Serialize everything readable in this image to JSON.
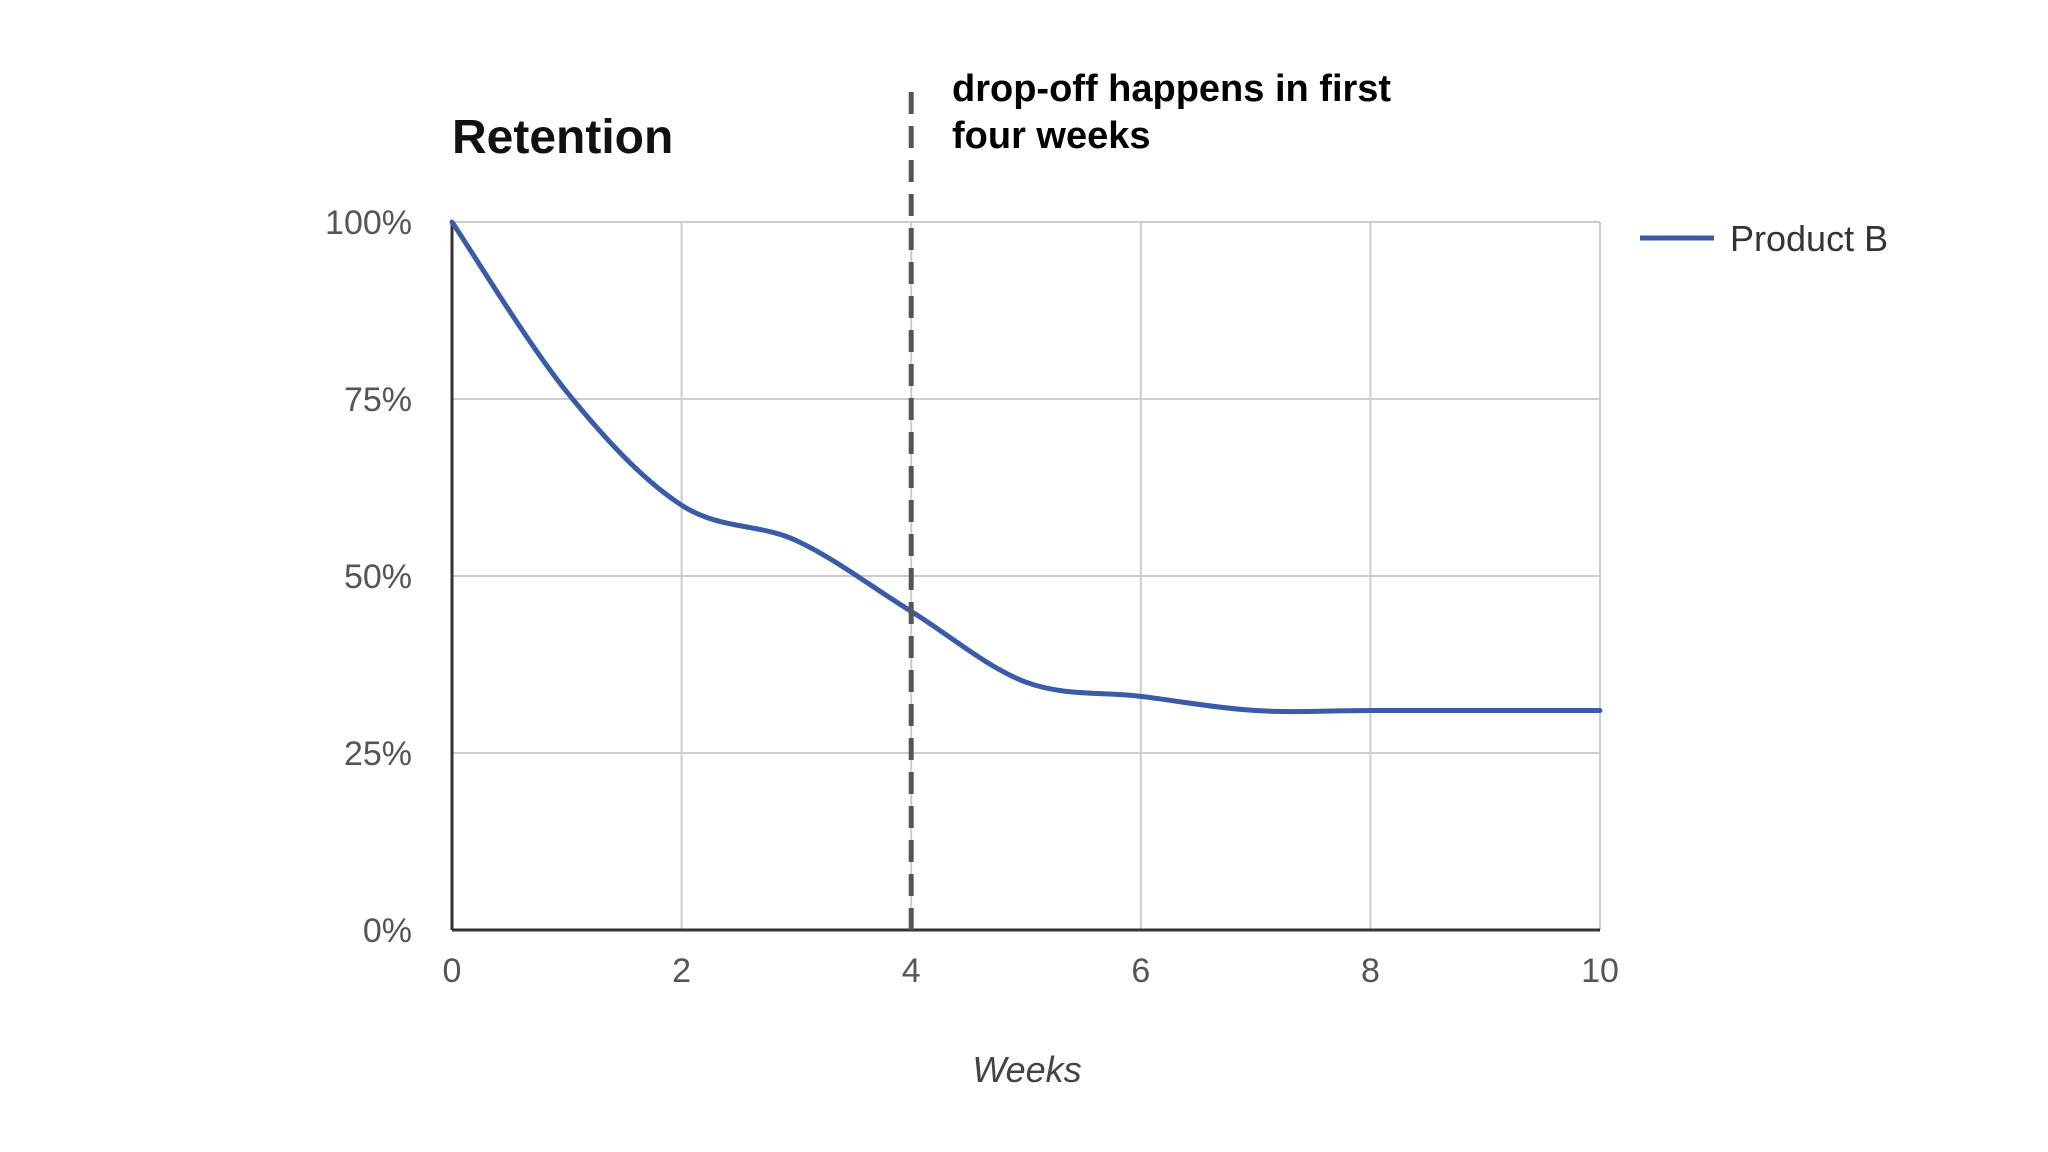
{
  "chart_data": {
    "type": "line",
    "title": "Retention",
    "xlabel": "Weeks",
    "ylabel": "",
    "xlim": [
      0,
      10
    ],
    "ylim": [
      0,
      100
    ],
    "x_ticks": [
      "0",
      "2",
      "4",
      "6",
      "8",
      "10"
    ],
    "x_tick_values": [
      0,
      2,
      4,
      6,
      8,
      10
    ],
    "y_ticks": [
      "0%",
      "25%",
      "50%",
      "75%",
      "100%"
    ],
    "y_tick_values": [
      0,
      25,
      50,
      75,
      100
    ],
    "grid": true,
    "legend_position": "right",
    "series": [
      {
        "name": "Product B",
        "color": "#3a5ba8",
        "x": [
          0,
          1,
          2,
          3,
          4,
          5,
          6,
          7,
          8,
          9,
          10
        ],
        "values": [
          100,
          76,
          60,
          55,
          45,
          35,
          33,
          31,
          31,
          31,
          31
        ]
      }
    ],
    "annotation": {
      "type": "vertical-dashed-line",
      "x": 4,
      "color": "#555555",
      "text_lines": [
        "drop-off happens in first",
        "four weeks"
      ]
    }
  }
}
